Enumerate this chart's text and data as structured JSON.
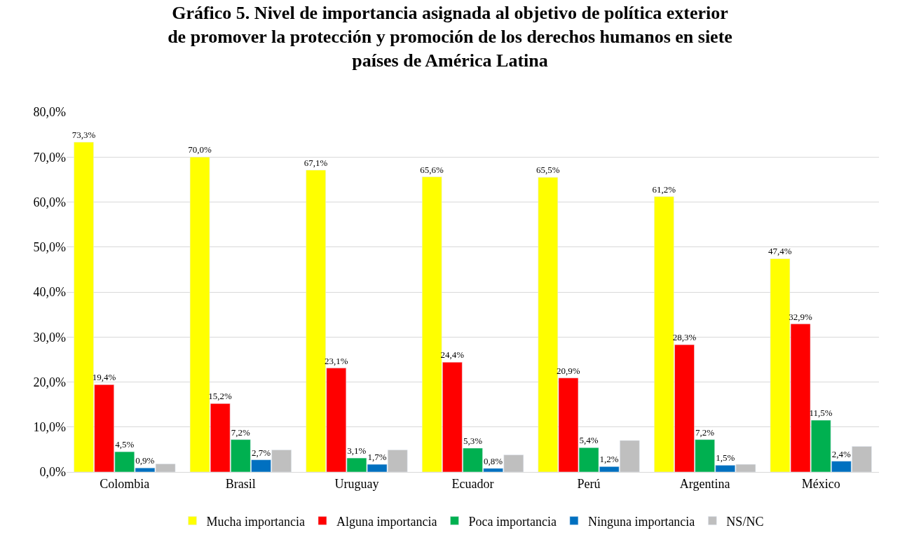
{
  "chart_data": {
    "type": "bar",
    "title": "Gráfico 5. Nivel de importancia asignada al objetivo de política exterior\nde promover la protección y promoción de los derechos humanos en siete\npaíses de América Latina",
    "categories": [
      "Colombia",
      "Brasil",
      "Uruguay",
      "Ecuador",
      "Perú",
      "Argentina",
      "México"
    ],
    "series": [
      {
        "name": "Mucha importancia",
        "color": "#ffff00",
        "values": [
          73.3,
          70.0,
          67.1,
          65.6,
          65.5,
          61.2,
          47.4
        ],
        "value_labels": [
          "73,3%",
          "70,0%",
          "67,1%",
          "65,6%",
          "65,5%",
          "61,2%",
          "47,4%"
        ]
      },
      {
        "name": "Alguna importancia",
        "color": "#ff0000",
        "values": [
          19.4,
          15.2,
          23.1,
          24.4,
          20.9,
          28.3,
          32.9
        ],
        "value_labels": [
          "19,4%",
          "15,2%",
          "23,1%",
          "24,4%",
          "20,9%",
          "28,3%",
          "32,9%"
        ]
      },
      {
        "name": "Poca importancia",
        "color": "#00b050",
        "values": [
          4.5,
          7.2,
          3.1,
          5.3,
          5.4,
          7.2,
          11.5
        ],
        "value_labels": [
          "4,5%",
          "7,2%",
          "3,1%",
          "5,3%",
          "5,4%",
          "7,2%",
          "11,5%"
        ]
      },
      {
        "name": "Ninguna importancia",
        "color": "#0070c0",
        "values": [
          0.9,
          2.7,
          1.7,
          0.8,
          1.2,
          1.5,
          2.4
        ],
        "value_labels": [
          "0,9%",
          "2,7%",
          "1,7%",
          "0,8%",
          "1,2%",
          "1,5%",
          "2,4%"
        ]
      },
      {
        "name": "NS/NC",
        "color": "#bfbfbf",
        "values": [
          1.8,
          4.9,
          4.9,
          3.8,
          7.0,
          1.7,
          5.7
        ]
      }
    ],
    "ylim": [
      0,
      80
    ],
    "yticks": [
      {
        "value": 0,
        "label": "0,0%"
      },
      {
        "value": 10,
        "label": "10,0%"
      },
      {
        "value": 20,
        "label": "20,0%"
      },
      {
        "value": 30,
        "label": "30,0%"
      },
      {
        "value": 40,
        "label": "40,0%"
      },
      {
        "value": 50,
        "label": "50,0%"
      },
      {
        "value": 60,
        "label": "60,0%"
      },
      {
        "value": 70,
        "label": "70,0%"
      },
      {
        "value": 80,
        "label": "80,0%"
      }
    ],
    "grid": "y",
    "legend": "bottom"
  }
}
